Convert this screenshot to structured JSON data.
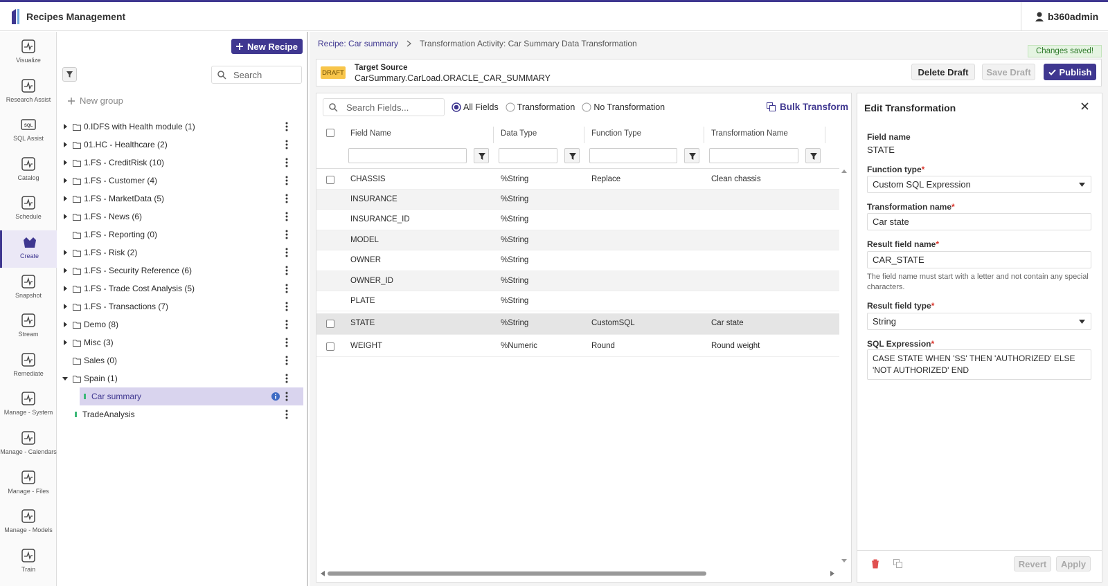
{
  "app": {
    "title": "Recipes Management",
    "user": "b360admin"
  },
  "nav": [
    {
      "label": "Visualize"
    },
    {
      "label": "Research Assist"
    },
    {
      "label": "SQL Assist",
      "icon_text": "SQL"
    },
    {
      "label": "Catalog"
    },
    {
      "label": "Schedule"
    },
    {
      "label": "Create",
      "active": true
    },
    {
      "label": "Snapshot"
    },
    {
      "label": "Stream"
    },
    {
      "label": "Remediate"
    },
    {
      "label": "Manage - System"
    },
    {
      "label": "Manage - Calendars"
    },
    {
      "label": "Manage - Files"
    },
    {
      "label": "Manage - Models"
    },
    {
      "label": "Train"
    }
  ],
  "sidebar": {
    "new_recipe": "New Recipe",
    "search_placeholder": "Search",
    "new_group": "New group",
    "groups": [
      {
        "label": "0.IDFS with Health module (1)",
        "expandable": true
      },
      {
        "label": "01.HC - Healthcare (2)",
        "expandable": true
      },
      {
        "label": "1.FS - CreditRisk (10)",
        "expandable": true
      },
      {
        "label": "1.FS - Customer (4)",
        "expandable": true
      },
      {
        "label": "1.FS - MarketData (5)",
        "expandable": true
      },
      {
        "label": "1.FS - News (6)",
        "expandable": true
      },
      {
        "label": "1.FS - Reporting (0)",
        "expandable": false
      },
      {
        "label": "1.FS - Risk (2)",
        "expandable": true
      },
      {
        "label": "1.FS - Security Reference (6)",
        "expandable": true
      },
      {
        "label": "1.FS - Trade Cost Analysis (5)",
        "expandable": true
      },
      {
        "label": "1.FS - Transactions (7)",
        "expandable": true
      },
      {
        "label": "Demo (8)",
        "expandable": true
      },
      {
        "label": "Misc (3)",
        "expandable": true
      },
      {
        "label": "Sales (0)",
        "expandable": false
      },
      {
        "label": "Spain (1)",
        "expandable": true,
        "expanded": true,
        "children": [
          {
            "label": "Car summary",
            "selected": true
          }
        ]
      }
    ],
    "recipes": [
      {
        "label": "TradeAnalysis"
      }
    ]
  },
  "breadcrumb": [
    "Recipe: Car summary",
    "Transformation Activity: Car Summary Data Transformation"
  ],
  "status": "Changes saved!",
  "header": {
    "badge": "DRAFT",
    "label": "Target Source",
    "source": "CarSummary.CarLoad.ORACLE_CAR_SUMMARY",
    "buttons": [
      {
        "label": "Delete Draft"
      },
      {
        "label": "Save Draft",
        "disabled": true
      },
      {
        "label": "Publish",
        "primary": true
      }
    ]
  },
  "toolbar": {
    "search_placeholder": "Search Fields...",
    "filters": [
      {
        "label": "All Fields",
        "selected": true
      },
      {
        "label": "Transformation"
      },
      {
        "label": "No Transformation"
      }
    ],
    "bulk": "Bulk Transform"
  },
  "table": {
    "columns": [
      "Field Name",
      "Data Type",
      "Function Type",
      "Transformation Name"
    ],
    "rows": [
      {
        "field": "CHASSIS",
        "type": "%String",
        "function": "Replace",
        "name": "Clean chassis"
      },
      {
        "field": "INSURANCE",
        "type": "%String"
      },
      {
        "field": "INSURANCE_ID",
        "type": "%String"
      },
      {
        "field": "MODEL",
        "type": "%String"
      },
      {
        "field": "OWNER",
        "type": "%String"
      },
      {
        "field": "OWNER_ID",
        "type": "%String"
      },
      {
        "field": "PLATE",
        "type": "%String"
      },
      {
        "field": "STATE",
        "type": "%String",
        "function": "CustomSQL",
        "name": "Car state",
        "selected": true
      },
      {
        "field": "WEIGHT",
        "type": "%Numeric",
        "function": "Round",
        "name": "Round weight"
      }
    ]
  },
  "edit": {
    "title": "Edit Transformation",
    "required_mark": "*",
    "field_name_label": "Field name",
    "field_name": "STATE",
    "function_type_label": "Function type",
    "function_type": "Custom SQL Expression",
    "transformation_name_label": "Transformation name",
    "transformation_name": "Car state",
    "result_field_name_label": "Result field name",
    "result_field_name": "CAR_STATE",
    "hint": "The field name must start with a letter and not contain any special characters.",
    "result_field_type_label": "Result field type",
    "result_field_type": "String",
    "sql_label": "SQL Expression",
    "sql": "CASE STATE WHEN 'SS' THEN 'AUTHORIZED' ELSE 'NOT AUTHORIZED' END",
    "buttons": [
      {
        "label": "Revert",
        "disabled": true
      },
      {
        "label": "Apply",
        "disabled": true
      }
    ]
  }
}
